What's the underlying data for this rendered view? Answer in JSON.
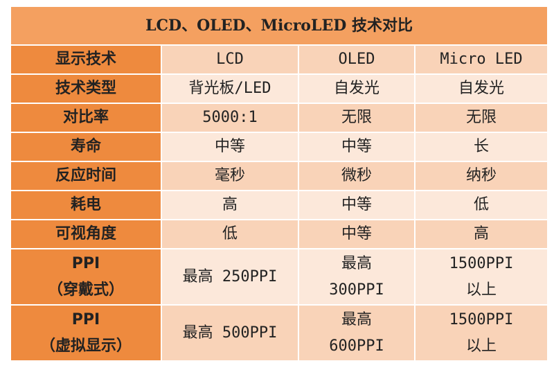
{
  "title": "LCD、OLED、MicroLED 技术对比",
  "table": {
    "header": [
      "显示技术",
      "LCD",
      "OLED",
      "Micro LED"
    ],
    "rows": [
      [
        "技术类型",
        "背光板/LED",
        "自发光",
        "自发光"
      ],
      [
        "对比率",
        "5000:1",
        "无限",
        "无限"
      ],
      [
        "寿命",
        "中等",
        "中等",
        "长"
      ],
      [
        "反应时间",
        "毫秒",
        "微秒",
        "纳秒"
      ],
      [
        "耗电",
        "高",
        "中等",
        "低"
      ],
      [
        "可视角度",
        "低",
        "中等",
        "高"
      ],
      [
        [
          "PPI",
          "（穿戴式）"
        ],
        "最高 250PPI",
        [
          "最高",
          "300PPI"
        ],
        [
          "1500PPI",
          "以上"
        ]
      ],
      [
        [
          "PPI",
          "（虚拟显示）"
        ],
        "最高 500PPI",
        [
          "最高",
          "600PPI"
        ],
        [
          "1500PPI",
          "以上"
        ]
      ]
    ]
  }
}
